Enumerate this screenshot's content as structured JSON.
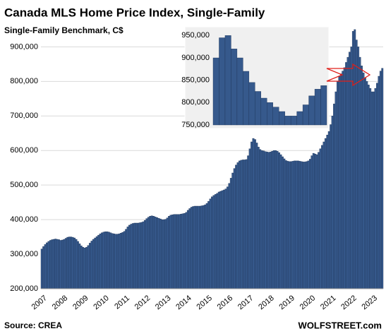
{
  "chart_data": [
    {
      "type": "bar",
      "title": "Canada  MLS Home Price Index, Single-Family",
      "subtitle": "Single-Family Benchmark, C$",
      "source": "Source: CREA",
      "credit": "WOLFSTREET.com",
      "color": "#36598c",
      "grid": true,
      "ylim": [
        200000,
        960000
      ],
      "yticks": [
        {
          "value": 200000,
          "label": "200,000"
        },
        {
          "value": 300000,
          "label": "300,000"
        },
        {
          "value": 400000,
          "label": "400,000"
        },
        {
          "value": 500000,
          "label": "500,000"
        },
        {
          "value": 600000,
          "label": "600,000"
        },
        {
          "value": 700000,
          "label": "700,000"
        },
        {
          "value": 800000,
          "label": "800,000"
        },
        {
          "value": 900000,
          "label": "900,000"
        }
      ],
      "categories": [
        "2007",
        null,
        null,
        null,
        null,
        null,
        null,
        null,
        null,
        null,
        null,
        null,
        "2008",
        null,
        null,
        null,
        null,
        null,
        null,
        null,
        null,
        null,
        null,
        null,
        "2009",
        null,
        null,
        null,
        null,
        null,
        null,
        null,
        null,
        null,
        null,
        null,
        "2010",
        null,
        null,
        null,
        null,
        null,
        null,
        null,
        null,
        null,
        null,
        null,
        "2011",
        null,
        null,
        null,
        null,
        null,
        null,
        null,
        null,
        null,
        null,
        null,
        "2012",
        null,
        null,
        null,
        null,
        null,
        null,
        null,
        null,
        null,
        null,
        null,
        "2013",
        null,
        null,
        null,
        null,
        null,
        null,
        null,
        null,
        null,
        null,
        null,
        "2014",
        null,
        null,
        null,
        null,
        null,
        null,
        null,
        null,
        null,
        null,
        null,
        "2015",
        null,
        null,
        null,
        null,
        null,
        null,
        null,
        null,
        null,
        null,
        null,
        "2016",
        null,
        null,
        null,
        null,
        null,
        null,
        null,
        null,
        null,
        null,
        null,
        "2017",
        null,
        null,
        null,
        null,
        null,
        null,
        null,
        null,
        null,
        null,
        null,
        "2018",
        null,
        null,
        null,
        null,
        null,
        null,
        null,
        null,
        null,
        null,
        null,
        "2019",
        null,
        null,
        null,
        null,
        null,
        null,
        null,
        null,
        null,
        null,
        null,
        "2020",
        null,
        null,
        null,
        null,
        null,
        null,
        null,
        null,
        null,
        null,
        null,
        "2021",
        null,
        null,
        null,
        null,
        null,
        null,
        null,
        null,
        null,
        null,
        null,
        "2022",
        null,
        null,
        null,
        null,
        null,
        null,
        null,
        null,
        null,
        null,
        null,
        "2023",
        null,
        null,
        null,
        null,
        null,
        null
      ],
      "values": [
        315000,
        322000,
        328000,
        333000,
        337000,
        340000,
        342000,
        343000,
        344000,
        343000,
        342000,
        340000,
        341000,
        343000,
        346000,
        349000,
        350000,
        350000,
        349000,
        347000,
        343000,
        337000,
        330000,
        324000,
        320000,
        318000,
        320000,
        325000,
        332000,
        338000,
        343000,
        347000,
        351000,
        355000,
        359000,
        362000,
        364000,
        365000,
        365000,
        364000,
        362000,
        360000,
        359000,
        358000,
        358000,
        359000,
        361000,
        363000,
        366000,
        372000,
        379000,
        384000,
        387000,
        389000,
        390000,
        390000,
        390000,
        391000,
        392000,
        394000,
        398000,
        403000,
        407000,
        410000,
        411000,
        410000,
        408000,
        406000,
        404000,
        402000,
        400000,
        400000,
        401000,
        405000,
        410000,
        413000,
        414000,
        415000,
        415000,
        415000,
        415000,
        416000,
        417000,
        418000,
        421000,
        427000,
        432000,
        436000,
        438000,
        439000,
        439000,
        439000,
        439000,
        440000,
        441000,
        443000,
        447000,
        453000,
        460000,
        466000,
        470000,
        473000,
        476000,
        480000,
        482000,
        484000,
        486000,
        489000,
        495000,
        505000,
        520000,
        535000,
        548000,
        558000,
        565000,
        570000,
        572000,
        573000,
        573000,
        574000,
        585000,
        605000,
        625000,
        635000,
        632000,
        622000,
        610000,
        603000,
        600000,
        599000,
        597000,
        596000,
        595000,
        596000,
        598000,
        600000,
        600000,
        598000,
        594000,
        588000,
        582000,
        576000,
        571000,
        569000,
        568000,
        568000,
        569000,
        570000,
        570000,
        570000,
        569000,
        568000,
        567000,
        567000,
        568000,
        570000,
        575000,
        585000,
        592000,
        590000,
        588000,
        595000,
        605000,
        615000,
        625000,
        635000,
        645000,
        655000,
        675000,
        700000,
        735000,
        770000,
        800000,
        815000,
        822000,
        830000,
        840000,
        855000,
        870000,
        885000,
        900000,
        945000,
        950000,
        920000,
        900000,
        870000,
        845000,
        825000,
        810000,
        800000,
        790000,
        780000,
        770000,
        770000,
        780000,
        795000,
        815000,
        830000,
        838000
      ]
    },
    {
      "type": "bar",
      "color": "#36598c",
      "grid": false,
      "ylim": [
        750000,
        960000
      ],
      "yticks": [
        {
          "value": 750000,
          "label": "750,000"
        },
        {
          "value": 800000,
          "label": "800,000"
        },
        {
          "value": 850000,
          "label": "850,000"
        },
        {
          "value": 900000,
          "label": "900,000"
        },
        {
          "value": 950000,
          "label": "950,000"
        }
      ],
      "values": [
        900000,
        945000,
        950000,
        920000,
        900000,
        870000,
        845000,
        825000,
        810000,
        800000,
        790000,
        780000,
        770000,
        770000,
        780000,
        795000,
        815000,
        830000,
        838000
      ]
    }
  ]
}
